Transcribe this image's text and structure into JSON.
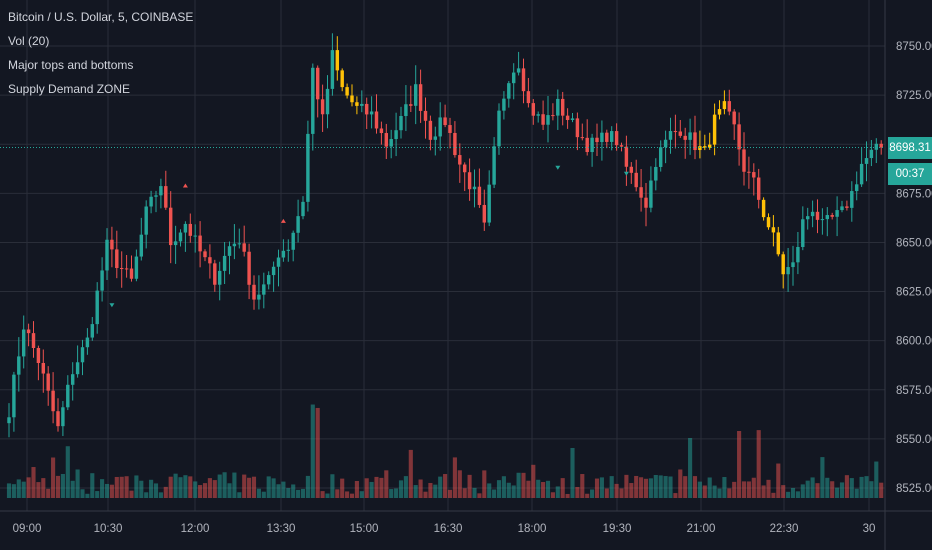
{
  "legend": {
    "title": "Bitcoin / U.S. Dollar, 5, COINBASE",
    "indicator_vol": "Vol (20)",
    "indicator_tops": "Major tops and bottoms",
    "indicator_zone": "Supply Demand ZONE"
  },
  "price_badge": {
    "value": "8698.31",
    "timer": "00:37"
  },
  "colors": {
    "background": "#131722",
    "grid": "#2a2e39",
    "up": "#26a69a",
    "down": "#ef5350",
    "highlight": "#ffc107",
    "axis_text": "#b2b5be"
  },
  "chart_data": {
    "type": "candlestick",
    "symbol": "Bitcoin / U.S. Dollar, 5, COINBASE",
    "y_axis": {
      "ticks": [
        8525,
        8550,
        8575,
        8600,
        8625,
        8650,
        8675,
        8700,
        8725,
        8750
      ],
      "tick_labels": [
        "8525.00",
        "8550.00",
        "8575.00",
        "8600.00",
        "8625.00",
        "8650.00",
        "8675.00",
        "8700.00",
        "8725.00",
        "8750.00"
      ],
      "range": [
        8515,
        8765
      ]
    },
    "x_axis": {
      "labels": [
        "09:00",
        "10:30",
        "12:00",
        "13:30",
        "15:00",
        "16:30",
        "18:00",
        "19:30",
        "21:00",
        "22:30",
        "30"
      ]
    },
    "last_price": 8698.31,
    "grid": true,
    "overlay_series": [
      "Vol (20)",
      "Major tops and bottoms",
      "Supply Demand ZONE"
    ],
    "close_path": [
      [
        0,
        8565
      ],
      [
        3,
        8608
      ],
      [
        6,
        8590
      ],
      [
        10,
        8555
      ],
      [
        13,
        8585
      ],
      [
        16,
        8600
      ],
      [
        20,
        8648
      ],
      [
        22,
        8640
      ],
      [
        25,
        8630
      ],
      [
        28,
        8665
      ],
      [
        31,
        8680
      ],
      [
        33,
        8650
      ],
      [
        36,
        8660
      ],
      [
        39,
        8645
      ],
      [
        42,
        8632
      ],
      [
        45,
        8648
      ],
      [
        47,
        8652
      ],
      [
        50,
        8622
      ],
      [
        53,
        8630
      ],
      [
        55,
        8645
      ],
      [
        57,
        8648
      ],
      [
        60,
        8672
      ],
      [
        62,
        8738
      ],
      [
        64,
        8712
      ],
      [
        66,
        8745
      ],
      [
        68,
        8728
      ],
      [
        71,
        8718
      ],
      [
        74,
        8715
      ],
      [
        77,
        8700
      ],
      [
        80,
        8712
      ],
      [
        83,
        8728
      ],
      [
        86,
        8705
      ],
      [
        89,
        8712
      ],
      [
        92,
        8690
      ],
      [
        95,
        8675
      ],
      [
        97,
        8657
      ],
      [
        100,
        8715
      ],
      [
        102,
        8735
      ],
      [
        104,
        8742
      ],
      [
        106,
        8720
      ],
      [
        109,
        8710
      ],
      [
        112,
        8720
      ],
      [
        115,
        8710
      ],
      [
        118,
        8700
      ],
      [
        120,
        8700
      ],
      [
        122,
        8705
      ],
      [
        124,
        8702
      ],
      [
        126,
        8688
      ],
      [
        128,
        8680
      ],
      [
        130,
        8670
      ],
      [
        132,
        8692
      ],
      [
        135,
        8705
      ],
      [
        137,
        8708
      ],
      [
        140,
        8700
      ],
      [
        142,
        8695
      ],
      [
        144,
        8712
      ],
      [
        146,
        8718
      ],
      [
        148,
        8708
      ],
      [
        150,
        8688
      ],
      [
        152,
        8680
      ],
      [
        154,
        8665
      ],
      [
        156,
        8652
      ],
      [
        158,
        8635
      ],
      [
        160,
        8638
      ],
      [
        162,
        8660
      ],
      [
        164,
        8668
      ],
      [
        166,
        8658
      ],
      [
        168,
        8662
      ],
      [
        170,
        8665
      ],
      [
        172,
        8675
      ],
      [
        174,
        8690
      ],
      [
        176,
        8695
      ],
      [
        178,
        8698.31
      ]
    ],
    "highlight_indices": [
      [
        67,
        71
      ],
      [
        141,
        146
      ],
      [
        154,
        158
      ]
    ],
    "markers": [
      {
        "index": 21,
        "kind": "bottom",
        "price": 8618
      },
      {
        "index": 36,
        "kind": "top",
        "price": 8679
      },
      {
        "index": 56,
        "kind": "top",
        "price": 8661
      },
      {
        "index": 112,
        "kind": "bottom",
        "price": 8688
      },
      {
        "index": 126,
        "kind": "bottom",
        "price": 8685
      }
    ]
  }
}
